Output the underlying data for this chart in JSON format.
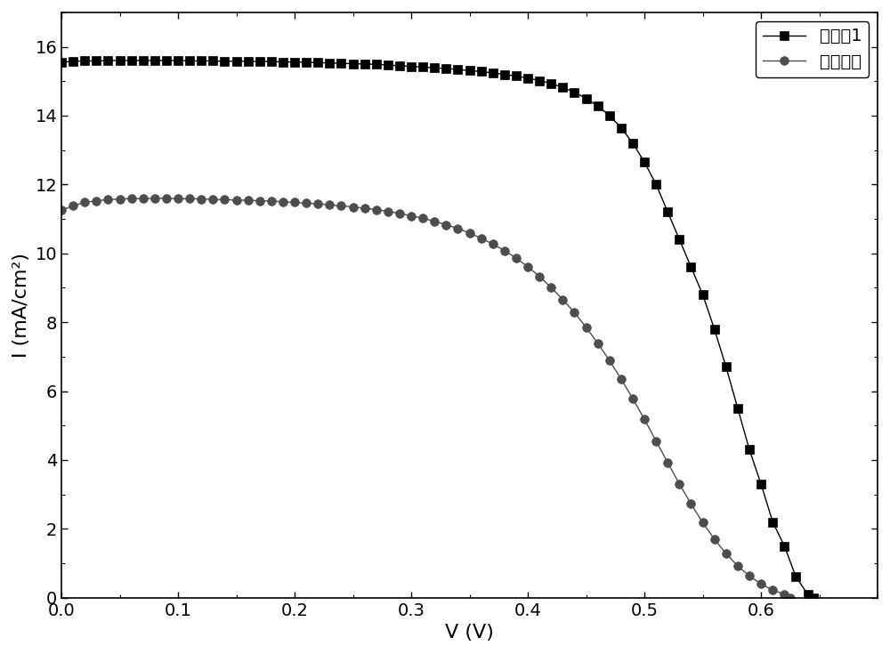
{
  "title": "",
  "xlabel": "V (V)",
  "ylabel": "I (mA/cm²)",
  "xlim": [
    0.0,
    0.7
  ],
  "ylim": [
    0,
    17
  ],
  "xticks": [
    0.0,
    0.1,
    0.2,
    0.3,
    0.4,
    0.5,
    0.6
  ],
  "yticks": [
    0,
    2,
    4,
    6,
    8,
    10,
    12,
    14,
    16
  ],
  "series1_label": "实施例1",
  "series2_label": "传统电池",
  "series1_color": "#000000",
  "series2_color": "#4d4d4d",
  "series1_marker": "s",
  "series2_marker": "o",
  "series1_markersize": 7,
  "series2_markersize": 7,
  "linewidth": 1.0,
  "background_color": "#ffffff",
  "tick_fontsize": 14,
  "label_fontsize": 16,
  "legend_fontsize": 14,
  "series1_V": [
    0.0,
    0.01,
    0.02,
    0.03,
    0.04,
    0.05,
    0.06,
    0.07,
    0.08,
    0.09,
    0.1,
    0.11,
    0.12,
    0.13,
    0.14,
    0.15,
    0.16,
    0.17,
    0.18,
    0.19,
    0.2,
    0.21,
    0.22,
    0.23,
    0.24,
    0.25,
    0.26,
    0.27,
    0.28,
    0.29,
    0.3,
    0.31,
    0.32,
    0.33,
    0.34,
    0.35,
    0.36,
    0.37,
    0.38,
    0.39,
    0.4,
    0.41,
    0.42,
    0.43,
    0.44,
    0.45,
    0.46,
    0.47,
    0.48,
    0.49,
    0.5,
    0.51,
    0.52,
    0.53,
    0.54,
    0.55,
    0.56,
    0.57,
    0.58,
    0.59,
    0.6,
    0.61,
    0.62,
    0.63,
    0.64,
    0.645
  ],
  "series1_I": [
    15.55,
    15.58,
    15.59,
    15.59,
    15.6,
    15.6,
    15.6,
    15.6,
    15.6,
    15.6,
    15.6,
    15.59,
    15.59,
    15.59,
    15.58,
    15.58,
    15.58,
    15.57,
    15.57,
    15.56,
    15.56,
    15.55,
    15.54,
    15.53,
    15.52,
    15.51,
    15.5,
    15.49,
    15.47,
    15.45,
    15.43,
    15.41,
    15.39,
    15.37,
    15.34,
    15.31,
    15.28,
    15.24,
    15.2,
    15.15,
    15.09,
    15.02,
    14.93,
    14.82,
    14.68,
    14.5,
    14.28,
    14.0,
    13.65,
    13.2,
    12.65,
    12.0,
    11.2,
    10.4,
    9.6,
    8.8,
    7.8,
    6.7,
    5.5,
    4.3,
    3.3,
    2.2,
    1.5,
    0.6,
    0.1,
    0.0
  ],
  "series2_V": [
    0.0,
    0.01,
    0.02,
    0.03,
    0.04,
    0.05,
    0.06,
    0.07,
    0.08,
    0.09,
    0.1,
    0.11,
    0.12,
    0.13,
    0.14,
    0.15,
    0.16,
    0.17,
    0.18,
    0.19,
    0.2,
    0.21,
    0.22,
    0.23,
    0.24,
    0.25,
    0.26,
    0.27,
    0.28,
    0.29,
    0.3,
    0.31,
    0.32,
    0.33,
    0.34,
    0.35,
    0.36,
    0.37,
    0.38,
    0.39,
    0.4,
    0.41,
    0.42,
    0.43,
    0.44,
    0.45,
    0.46,
    0.47,
    0.48,
    0.49,
    0.5,
    0.51,
    0.52,
    0.53,
    0.54,
    0.55,
    0.56,
    0.57,
    0.58,
    0.59,
    0.6,
    0.61,
    0.62,
    0.625
  ],
  "series2_I": [
    11.25,
    11.38,
    11.48,
    11.53,
    11.56,
    11.58,
    11.59,
    11.59,
    11.6,
    11.6,
    11.59,
    11.59,
    11.58,
    11.57,
    11.56,
    11.55,
    11.54,
    11.53,
    11.52,
    11.5,
    11.48,
    11.46,
    11.44,
    11.41,
    11.38,
    11.35,
    11.31,
    11.27,
    11.22,
    11.16,
    11.09,
    11.02,
    10.93,
    10.83,
    10.72,
    10.59,
    10.44,
    10.27,
    10.08,
    9.86,
    9.61,
    9.33,
    9.01,
    8.66,
    8.28,
    7.85,
    7.39,
    6.89,
    6.35,
    5.78,
    5.18,
    4.55,
    3.92,
    3.3,
    2.72,
    2.18,
    1.7,
    1.28,
    0.92,
    0.63,
    0.4,
    0.22,
    0.1,
    0.0
  ]
}
